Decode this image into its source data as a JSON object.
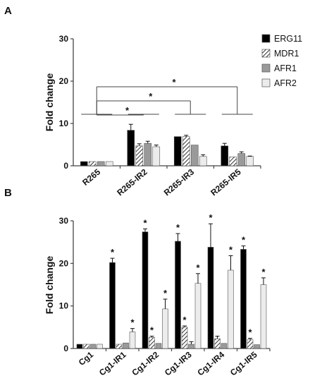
{
  "colors": {
    "ERG11": "#000000",
    "MDR1": "#ffffff",
    "MDR1_hatch": "#333333",
    "AFR1": "#9a9a9a",
    "AFR2": "#ececec",
    "axis": "#444444"
  },
  "legend": [
    "ERG11",
    "MDR1",
    "AFR1",
    "AFR2"
  ],
  "chart_data": [
    {
      "panel": "A",
      "type": "bar",
      "ylabel": "Fold change",
      "ylim": [
        0,
        30
      ],
      "yticks": [
        0,
        10,
        20,
        30
      ],
      "categories": [
        "R265",
        "R265-IR2",
        "R265-IR3",
        "R265-IR5"
      ],
      "legend_position": "top-right",
      "series": [
        {
          "name": "ERG11",
          "values": [
            1.0,
            8.4,
            6.9,
            4.7
          ],
          "errors": [
            0,
            1.4,
            0,
            0.6
          ]
        },
        {
          "name": "MDR1",
          "values": [
            1.0,
            4.7,
            6.9,
            2.1
          ],
          "errors": [
            0,
            0.5,
            0.3,
            0
          ]
        },
        {
          "name": "AFR1",
          "values": [
            1.0,
            5.3,
            4.9,
            2.9
          ],
          "errors": [
            0,
            0.5,
            0,
            0.4
          ]
        },
        {
          "name": "AFR2",
          "values": [
            1.0,
            4.5,
            2.2,
            2.2
          ],
          "errors": [
            0,
            0.4,
            0.4,
            0.1
          ]
        }
      ],
      "significance": [
        {
          "from": 0,
          "to": 1,
          "label": "*"
        },
        {
          "from": 0,
          "to": 2,
          "label": "*"
        },
        {
          "from": 0,
          "to": 3,
          "label": "*"
        }
      ]
    },
    {
      "panel": "B",
      "type": "bar",
      "ylabel": "Fold change",
      "ylim": [
        0,
        30
      ],
      "yticks": [
        0,
        10,
        20,
        30
      ],
      "categories": [
        "Cg1",
        "Cg1-IR1",
        "Cg1-IR2",
        "Cg1-IR3",
        "Cg1-IR4",
        "Cg1-IR5"
      ],
      "series": [
        {
          "name": "ERG11",
          "values": [
            1.0,
            20.2,
            27.4,
            25.2,
            23.8,
            23.3
          ],
          "errors": [
            0,
            1.0,
            0.7,
            1.8,
            5.5,
            0.8
          ],
          "stars": [
            false,
            true,
            true,
            true,
            true,
            true
          ]
        },
        {
          "name": "MDR1",
          "values": [
            1.0,
            1.0,
            2.6,
            5.0,
            2.3,
            2.1
          ],
          "errors": [
            0,
            0,
            0.3,
            0.3,
            0.6,
            0.3
          ],
          "stars": [
            false,
            false,
            true,
            true,
            false,
            true
          ]
        },
        {
          "name": "AFR1",
          "values": [
            1.0,
            1.3,
            1.2,
            1.0,
            1.2,
            0.9
          ],
          "errors": [
            0,
            0,
            0,
            0.6,
            0,
            0
          ],
          "stars": [
            false,
            false,
            false,
            false,
            false,
            false
          ]
        },
        {
          "name": "AFR2",
          "values": [
            1.0,
            3.9,
            9.3,
            15.3,
            18.4,
            15.0
          ],
          "errors": [
            0,
            0.8,
            2.3,
            2.3,
            3.4,
            1.6
          ],
          "stars": [
            false,
            true,
            true,
            true,
            true,
            true
          ]
        }
      ]
    }
  ]
}
